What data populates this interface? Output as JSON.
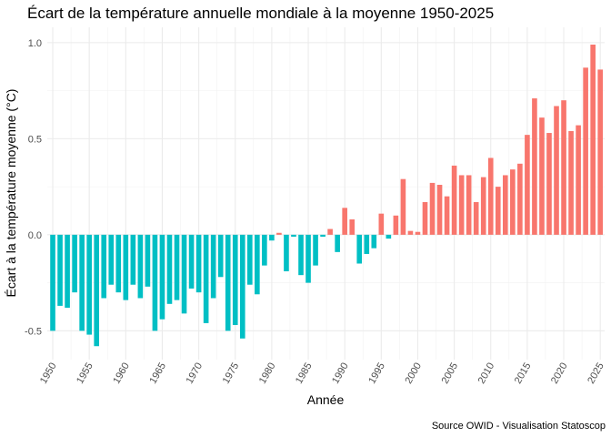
{
  "chart_data": {
    "type": "bar",
    "title": "Écart de la température annuelle mondiale à la moyenne 1950-2025",
    "x_label": "Année",
    "y_label": "Écart à la température moyenne (°C)",
    "caption": "Source OWID - Visualisation Statoscop",
    "x": [
      1950,
      1951,
      1952,
      1953,
      1954,
      1955,
      1956,
      1957,
      1958,
      1959,
      1960,
      1961,
      1962,
      1963,
      1964,
      1965,
      1966,
      1967,
      1968,
      1969,
      1970,
      1971,
      1972,
      1973,
      1974,
      1975,
      1976,
      1977,
      1978,
      1979,
      1980,
      1981,
      1982,
      1983,
      1984,
      1985,
      1986,
      1987,
      1988,
      1989,
      1990,
      1991,
      1992,
      1993,
      1994,
      1995,
      1996,
      1997,
      1998,
      1999,
      2000,
      2001,
      2002,
      2003,
      2004,
      2005,
      2006,
      2007,
      2008,
      2009,
      2010,
      2011,
      2012,
      2013,
      2014,
      2015,
      2016,
      2017,
      2018,
      2019,
      2020,
      2021,
      2022,
      2023,
      2024,
      2025
    ],
    "values": [
      -0.5,
      -0.37,
      -0.38,
      -0.3,
      -0.5,
      -0.52,
      -0.58,
      -0.33,
      -0.26,
      -0.3,
      -0.34,
      -0.26,
      -0.33,
      -0.27,
      -0.5,
      -0.44,
      -0.36,
      -0.34,
      -0.41,
      -0.28,
      -0.3,
      -0.46,
      -0.33,
      -0.22,
      -0.5,
      -0.47,
      -0.54,
      -0.26,
      -0.31,
      -0.16,
      -0.03,
      0.01,
      -0.19,
      -0.01,
      -0.21,
      -0.25,
      -0.16,
      -0.01,
      0.03,
      -0.09,
      0.14,
      0.08,
      -0.15,
      -0.1,
      -0.07,
      0.11,
      -0.02,
      0.1,
      0.29,
      0.02,
      0.015,
      0.17,
      0.27,
      0.26,
      0.2,
      0.36,
      0.31,
      0.31,
      0.17,
      0.3,
      0.4,
      0.25,
      0.31,
      0.34,
      0.37,
      0.52,
      0.71,
      0.61,
      0.53,
      0.67,
      0.7,
      0.54,
      0.57,
      0.87,
      0.99,
      0.86
    ],
    "color_positive": "#F8766D",
    "color_negative": "#00BFC4",
    "xlim": [
      1949.25,
      2025.6
    ],
    "xticks": [
      1950,
      1955,
      1960,
      1965,
      1970,
      1975,
      1980,
      1985,
      1990,
      1995,
      2000,
      2005,
      2010,
      2015,
      2020,
      2025
    ],
    "ylim": [
      -0.65,
      1.08
    ],
    "yticks": [
      -0.5,
      {
        "value": 0,
        "label": "0.0"
      },
      0.5,
      {
        "value": 1,
        "label": "1.0"
      }
    ],
    "grid": true
  }
}
